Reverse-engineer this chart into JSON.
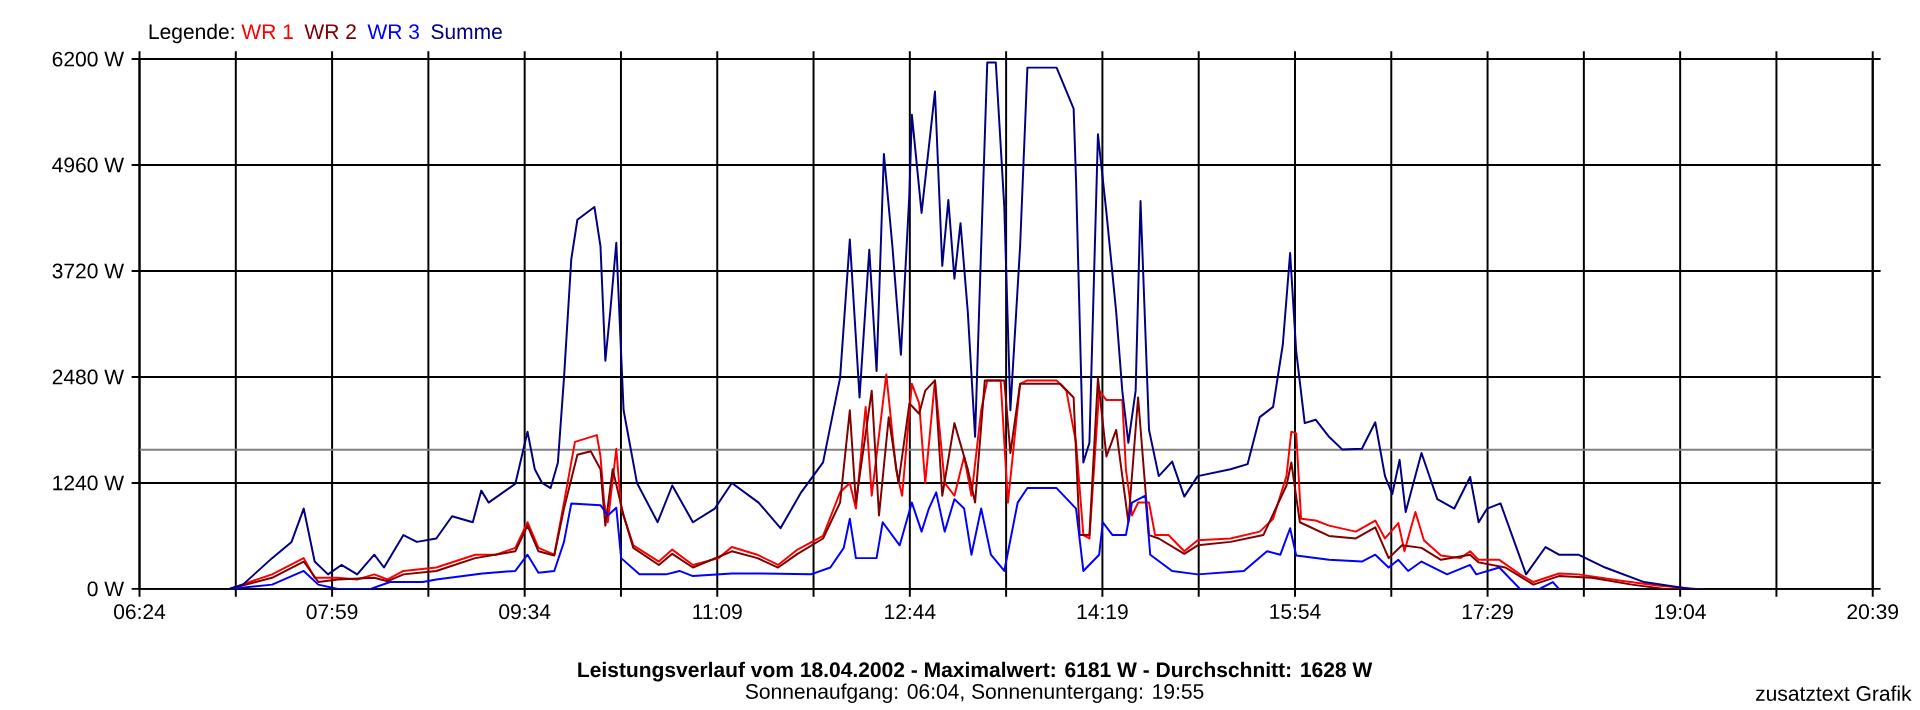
{
  "chart_data": {
    "type": "line",
    "title": "Leistungsverlauf vom 18.04.2002 - Maximalwert: 6181 W - Durchschnitt: 1628 W",
    "subtitle": "Sonnenaufgang: 06:04, Sonnenuntergang: 19:55",
    "annotations": [
      "zusatztext Grafik"
    ],
    "legend_title": "Legende:",
    "legend": "top left",
    "grid": true,
    "xlim": [
      6.4,
      20.65
    ],
    "xticks": [
      {
        "value": 6.4,
        "label": "06:24"
      },
      {
        "value": 7.191667,
        "label": null
      },
      {
        "value": 7.983333,
        "label": "07:59"
      },
      {
        "value": 8.775,
        "label": null
      },
      {
        "value": 9.566667,
        "label": "09:34"
      },
      {
        "value": 10.358333,
        "label": null
      },
      {
        "value": 11.15,
        "label": "11:09"
      },
      {
        "value": 11.941667,
        "label": null
      },
      {
        "value": 12.733333,
        "label": "12:44"
      },
      {
        "value": 13.525,
        "label": null
      },
      {
        "value": 14.316667,
        "label": "14:19"
      },
      {
        "value": 15.108333,
        "label": null
      },
      {
        "value": 15.9,
        "label": "15:54"
      },
      {
        "value": 16.691667,
        "label": null
      },
      {
        "value": 17.483333,
        "label": "17:29"
      },
      {
        "value": 18.275,
        "label": null
      },
      {
        "value": 19.066667,
        "label": "19:04"
      },
      {
        "value": 19.858333,
        "label": null
      },
      {
        "value": 20.65,
        "label": "20:39"
      }
    ],
    "ylim": [
      0,
      6200
    ],
    "yticks": [
      {
        "value": 0,
        "label": "0 W"
      },
      {
        "value": 1240,
        "label": "1240 W"
      },
      {
        "value": 2480,
        "label": "2480 W"
      },
      {
        "value": 3720,
        "label": "3720 W"
      },
      {
        "value": 4960,
        "label": "4960 W"
      },
      {
        "value": 6200,
        "label": "6200 W"
      }
    ],
    "ref_lines": [
      {
        "axis": "y",
        "value": 1628,
        "color": "#808080"
      }
    ],
    "series": [
      {
        "name": "WR 1",
        "color": "#ff0000",
        "x": [
          7.14,
          7.49,
          7.75,
          7.84,
          8.03,
          8.19,
          8.33,
          8.44,
          8.57,
          8.84,
          9.16,
          9.33,
          9.49,
          9.59,
          9.68,
          9.81,
          9.89,
          9.98,
          10.16,
          10.19,
          10.22,
          10.25,
          10.32,
          10.36,
          10.46,
          10.67,
          10.78,
          10.95,
          11.16,
          11.27,
          11.48,
          11.65,
          11.81,
          12.02,
          12.16,
          12.24,
          12.29,
          12.37,
          12.42,
          12.54,
          12.62,
          12.67,
          12.75,
          12.81,
          12.86,
          12.94,
          13.02,
          13.1,
          13.18,
          13.24,
          13.32,
          13.37,
          13.48,
          13.54,
          13.64,
          13.7,
          13.94,
          14.02,
          14.1,
          14.16,
          14.21,
          14.29,
          14.35,
          14.48,
          14.51,
          14.56,
          14.61,
          14.7,
          14.75,
          14.86,
          14.99,
          15.1,
          15.37,
          15.61,
          15.72,
          15.83,
          15.87,
          15.91,
          15.95,
          16.07,
          16.18,
          16.4,
          16.56,
          16.64,
          16.75,
          16.8,
          16.89,
          16.96,
          17.1,
          17.26,
          17.34,
          17.41,
          17.58,
          17.75,
          17.86,
          18.07,
          18.23,
          18.61,
          18.88,
          19.2
        ],
        "values": [
          0,
          170,
          360,
          130,
          130,
          110,
          170,
          110,
          210,
          250,
          400,
          400,
          480,
          780,
          480,
          400,
          1010,
          1720,
          1800,
          1550,
          1010,
          780,
          1640,
          940,
          510,
          320,
          460,
          280,
          360,
          490,
          400,
          280,
          460,
          620,
          1130,
          1240,
          940,
          2130,
          1090,
          2510,
          1400,
          1090,
          2400,
          2170,
          1240,
          2440,
          1240,
          1090,
          1550,
          1090,
          2090,
          2440,
          2440,
          1010,
          2400,
          2440,
          2440,
          2320,
          1710,
          630,
          590,
          2320,
          2210,
          2210,
          1400,
          860,
          1010,
          1010,
          630,
          630,
          440,
          570,
          590,
          670,
          820,
          1320,
          1840,
          1820,
          820,
          800,
          740,
          670,
          800,
          590,
          770,
          440,
          900,
          570,
          390,
          360,
          440,
          340,
          340,
          170,
          80,
          180,
          170,
          90,
          40,
          0
        ]
      },
      {
        "name": "WR 2",
        "color": "#800000",
        "x": [
          7.14,
          7.49,
          7.75,
          7.87,
          8.03,
          8.33,
          8.44,
          8.57,
          8.84,
          9.16,
          9.49,
          9.59,
          9.68,
          9.81,
          9.89,
          10.0,
          10.11,
          10.19,
          10.23,
          10.29,
          10.38,
          10.46,
          10.67,
          10.78,
          10.95,
          11.27,
          11.48,
          11.65,
          11.81,
          12.02,
          12.16,
          12.24,
          12.29,
          12.42,
          12.48,
          12.56,
          12.64,
          12.73,
          12.81,
          12.86,
          12.94,
          13.0,
          13.1,
          13.21,
          13.27,
          13.35,
          13.51,
          13.56,
          13.64,
          13.97,
          14.08,
          14.13,
          14.21,
          14.28,
          14.35,
          14.43,
          14.53,
          14.61,
          14.7,
          14.78,
          14.99,
          15.1,
          15.37,
          15.64,
          15.83,
          15.87,
          15.94,
          16.18,
          16.4,
          16.56,
          16.67,
          16.78,
          16.94,
          17.1,
          17.34,
          17.41,
          17.63,
          17.86,
          18.07,
          18.34,
          18.67,
          18.94,
          19.26
        ],
        "values": [
          0,
          130,
          320,
          80,
          110,
          130,
          90,
          170,
          210,
          360,
          440,
          740,
          440,
          390,
          940,
          1570,
          1610,
          1400,
          740,
          1400,
          860,
          480,
          280,
          410,
          250,
          440,
          360,
          250,
          410,
          590,
          1010,
          2090,
          1010,
          2320,
          860,
          2010,
          1240,
          2170,
          2050,
          2320,
          2440,
          1090,
          1940,
          1400,
          1010,
          2440,
          2440,
          1590,
          2400,
          2400,
          2240,
          630,
          630,
          2470,
          1550,
          1860,
          780,
          2240,
          630,
          590,
          410,
          510,
          550,
          630,
          1210,
          1480,
          780,
          620,
          590,
          720,
          360,
          510,
          480,
          340,
          400,
          310,
          250,
          50,
          150,
          130,
          50,
          0,
          0
        ]
      },
      {
        "name": "WR 3",
        "color": "#0000ff",
        "x": [
          7.14,
          7.49,
          7.75,
          7.87,
          8.03,
          8.3,
          8.46,
          8.73,
          8.84,
          9.22,
          9.49,
          9.59,
          9.68,
          9.81,
          9.89,
          9.95,
          10.19,
          10.25,
          10.32,
          10.36,
          10.51,
          10.73,
          10.84,
          10.95,
          11.27,
          11.49,
          11.92,
          12.08,
          12.19,
          12.24,
          12.29,
          12.46,
          12.51,
          12.65,
          12.75,
          12.83,
          12.89,
          12.95,
          13.02,
          13.1,
          13.18,
          13.24,
          13.32,
          13.4,
          13.51,
          13.62,
          13.7,
          13.94,
          14.1,
          14.16,
          14.29,
          14.32,
          14.4,
          14.51,
          14.56,
          14.67,
          14.71,
          14.89,
          15.1,
          15.48,
          15.67,
          15.78,
          15.86,
          15.91,
          16.18,
          16.45,
          16.56,
          16.67,
          16.75,
          16.83,
          16.94,
          17.15,
          17.34,
          17.39,
          17.58,
          17.75,
          17.91,
          18.02,
          18.07
        ],
        "values": [
          0,
          50,
          210,
          50,
          0,
          0,
          80,
          80,
          110,
          180,
          210,
          400,
          190,
          210,
          550,
          1000,
          980,
          860,
          950,
          360,
          170,
          170,
          210,
          150,
          180,
          180,
          170,
          250,
          480,
          820,
          360,
          360,
          780,
          510,
          1010,
          670,
          940,
          1130,
          670,
          1050,
          940,
          400,
          940,
          400,
          210,
          1010,
          1180,
          1180,
          940,
          210,
          400,
          780,
          630,
          630,
          1010,
          1090,
          400,
          210,
          170,
          210,
          440,
          400,
          710,
          390,
          340,
          320,
          400,
          250,
          340,
          210,
          320,
          170,
          280,
          170,
          250,
          0,
          0,
          80,
          0
        ]
      },
      {
        "name": "Summe",
        "color": "#000080",
        "x": [
          7.14,
          7.25,
          7.49,
          7.65,
          7.75,
          7.84,
          7.95,
          8.06,
          8.19,
          8.33,
          8.41,
          8.57,
          8.68,
          8.84,
          8.97,
          9.14,
          9.21,
          9.27,
          9.49,
          9.59,
          9.65,
          9.71,
          9.78,
          9.84,
          9.89,
          9.95,
          10.0,
          10.14,
          10.19,
          10.23,
          10.27,
          10.32,
          10.38,
          10.49,
          10.66,
          10.78,
          10.95,
          11.13,
          11.27,
          11.49,
          11.67,
          11.84,
          12.02,
          12.16,
          12.24,
          12.32,
          12.4,
          12.46,
          12.52,
          12.59,
          12.66,
          12.73,
          12.75,
          12.83,
          12.94,
          13.0,
          13.05,
          13.1,
          13.15,
          13.21,
          13.27,
          13.32,
          13.37,
          13.44,
          13.51,
          13.56,
          13.64,
          13.7,
          13.94,
          14.08,
          14.1,
          14.16,
          14.21,
          14.28,
          14.35,
          14.43,
          14.48,
          14.53,
          14.59,
          14.63,
          14.7,
          14.78,
          14.89,
          14.99,
          15.1,
          15.37,
          15.51,
          15.61,
          15.72,
          15.8,
          15.86,
          15.91,
          15.98,
          16.07,
          16.18,
          16.29,
          16.45,
          16.56,
          16.64,
          16.7,
          16.76,
          16.81,
          16.94,
          17.07,
          17.21,
          17.34,
          17.41,
          17.48,
          17.59,
          17.8,
          17.96,
          18.07,
          18.23,
          18.45,
          18.77,
          19.15,
          19.26
        ],
        "values": [
          0,
          50,
          360,
          550,
          940,
          320,
          170,
          280,
          170,
          400,
          250,
          630,
          550,
          590,
          850,
          780,
          1150,
          1010,
          1230,
          1840,
          1400,
          1240,
          1180,
          1480,
          2470,
          3860,
          4320,
          4470,
          4010,
          2670,
          3240,
          4050,
          2090,
          1240,
          780,
          1210,
          780,
          940,
          1240,
          1010,
          710,
          1130,
          1480,
          2470,
          4090,
          2240,
          3970,
          2550,
          5090,
          4010,
          2740,
          4630,
          5550,
          4400,
          5820,
          3780,
          4550,
          3630,
          4280,
          3240,
          1780,
          4010,
          6160,
          6160,
          4470,
          2090,
          4010,
          6100,
          6100,
          5620,
          4780,
          1480,
          1710,
          5320,
          4400,
          3240,
          2320,
          1710,
          2320,
          4540,
          1860,
          1320,
          1490,
          1080,
          1320,
          1400,
          1460,
          2010,
          2130,
          2860,
          3930,
          2780,
          1940,
          1980,
          1780,
          1630,
          1640,
          1950,
          1320,
          1110,
          1510,
          900,
          1590,
          1050,
          940,
          1310,
          780,
          940,
          1000,
          170,
          490,
          400,
          400,
          250,
          80,
          0,
          0
        ]
      }
    ]
  }
}
